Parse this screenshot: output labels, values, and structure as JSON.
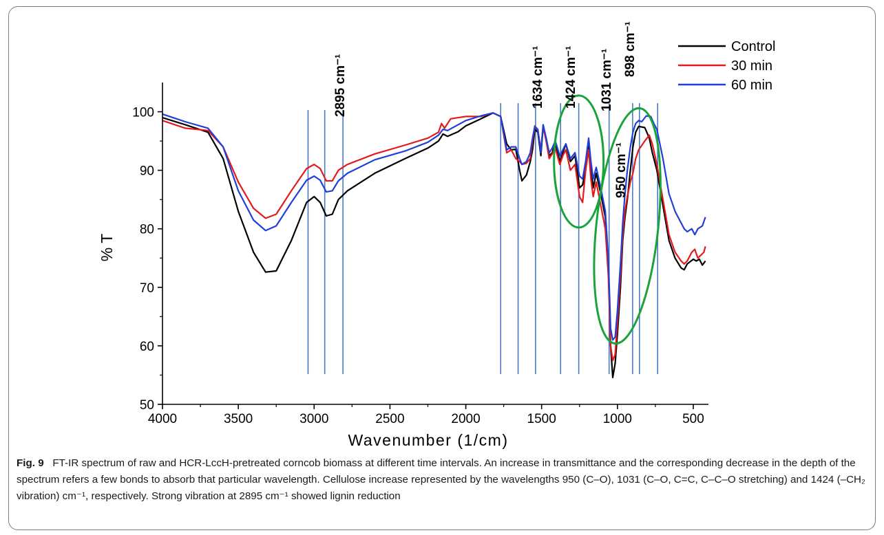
{
  "chart_data": {
    "type": "line",
    "xlabel": "Wavenumber (1/cm)",
    "ylabel": "% T",
    "xlim": [
      4000,
      400
    ],
    "ylim": [
      50,
      105
    ],
    "xticks": [
      4000,
      3500,
      3000,
      2500,
      2000,
      1500,
      1000,
      500
    ],
    "yticks": [
      50,
      60,
      70,
      80,
      90,
      100
    ],
    "legend_position": "top-right",
    "series": [
      {
        "name": "Control",
        "color": "#000000",
        "points": [
          [
            4000,
            99
          ],
          [
            3850,
            97.8
          ],
          [
            3700,
            96.5
          ],
          [
            3600,
            92
          ],
          [
            3500,
            83
          ],
          [
            3400,
            76
          ],
          [
            3320,
            72.6
          ],
          [
            3250,
            72.8
          ],
          [
            3150,
            78
          ],
          [
            3050,
            84.5
          ],
          [
            3000,
            85.5
          ],
          [
            2960,
            84.5
          ],
          [
            2920,
            82.2
          ],
          [
            2880,
            82.5
          ],
          [
            2840,
            85
          ],
          [
            2780,
            86.5
          ],
          [
            2600,
            89.5
          ],
          [
            2400,
            92
          ],
          [
            2250,
            93.8
          ],
          [
            2180,
            95
          ],
          [
            2150,
            96.2
          ],
          [
            2120,
            95.8
          ],
          [
            2050,
            96.6
          ],
          [
            2000,
            97.6
          ],
          [
            1900,
            98.8
          ],
          [
            1820,
            99.8
          ],
          [
            1770,
            99.2
          ],
          [
            1730,
            94.5
          ],
          [
            1700,
            93.5
          ],
          [
            1670,
            93.6
          ],
          [
            1645,
            90
          ],
          [
            1630,
            88.2
          ],
          [
            1600,
            89.2
          ],
          [
            1575,
            91.5
          ],
          [
            1560,
            93.5
          ],
          [
            1545,
            97
          ],
          [
            1525,
            96.5
          ],
          [
            1505,
            92.5
          ],
          [
            1490,
            97.5
          ],
          [
            1470,
            95.5
          ],
          [
            1450,
            92.5
          ],
          [
            1430,
            93
          ],
          [
            1410,
            94.8
          ],
          [
            1380,
            91.5
          ],
          [
            1360,
            93
          ],
          [
            1340,
            94.5
          ],
          [
            1310,
            91.5
          ],
          [
            1280,
            92.5
          ],
          [
            1250,
            87
          ],
          [
            1230,
            87.5
          ],
          [
            1210,
            90
          ],
          [
            1190,
            94.5
          ],
          [
            1175,
            90.5
          ],
          [
            1160,
            87
          ],
          [
            1140,
            89.5
          ],
          [
            1110,
            86
          ],
          [
            1080,
            82
          ],
          [
            1060,
            74
          ],
          [
            1045,
            60
          ],
          [
            1031,
            54.6
          ],
          [
            1015,
            57
          ],
          [
            1000,
            62
          ],
          [
            980,
            70
          ],
          [
            965,
            78
          ],
          [
            950,
            82
          ],
          [
            935,
            85
          ],
          [
            915,
            90
          ],
          [
            898,
            94
          ],
          [
            880,
            96.5
          ],
          [
            860,
            97.5
          ],
          [
            820,
            97.3
          ],
          [
            790,
            95.5
          ],
          [
            770,
            93
          ],
          [
            740,
            90
          ],
          [
            700,
            84
          ],
          [
            660,
            78
          ],
          [
            620,
            75
          ],
          [
            580,
            73.3
          ],
          [
            560,
            73
          ],
          [
            540,
            74
          ],
          [
            500,
            74.8
          ],
          [
            480,
            74.5
          ],
          [
            460,
            74.8
          ],
          [
            440,
            73.8
          ],
          [
            420,
            74.5
          ]
        ]
      },
      {
        "name": "30 min",
        "color": "#e31a1c",
        "points": [
          [
            4000,
            98.5
          ],
          [
            3850,
            97.2
          ],
          [
            3700,
            96.8
          ],
          [
            3600,
            94
          ],
          [
            3500,
            88
          ],
          [
            3400,
            83.5
          ],
          [
            3320,
            81.8
          ],
          [
            3250,
            82.5
          ],
          [
            3150,
            86.5
          ],
          [
            3050,
            90.3
          ],
          [
            3000,
            91
          ],
          [
            2960,
            90.3
          ],
          [
            2920,
            88.2
          ],
          [
            2880,
            88.2
          ],
          [
            2840,
            90
          ],
          [
            2780,
            91
          ],
          [
            2600,
            92.8
          ],
          [
            2400,
            94.3
          ],
          [
            2250,
            95.5
          ],
          [
            2180,
            96.5
          ],
          [
            2160,
            98
          ],
          [
            2140,
            97.2
          ],
          [
            2100,
            98.8
          ],
          [
            2050,
            99
          ],
          [
            2000,
            99.2
          ],
          [
            1900,
            99.2
          ],
          [
            1820,
            99.8
          ],
          [
            1770,
            99.2
          ],
          [
            1730,
            93
          ],
          [
            1700,
            93.5
          ],
          [
            1670,
            92
          ],
          [
            1645,
            91.5
          ],
          [
            1630,
            91
          ],
          [
            1600,
            91.2
          ],
          [
            1575,
            92
          ],
          [
            1560,
            95
          ],
          [
            1545,
            97.6
          ],
          [
            1525,
            96.8
          ],
          [
            1505,
            93.5
          ],
          [
            1490,
            97.5
          ],
          [
            1470,
            95
          ],
          [
            1450,
            92
          ],
          [
            1430,
            92.8
          ],
          [
            1410,
            93.8
          ],
          [
            1380,
            91
          ],
          [
            1360,
            92.5
          ],
          [
            1340,
            93.5
          ],
          [
            1310,
            90
          ],
          [
            1280,
            91
          ],
          [
            1250,
            85.5
          ],
          [
            1230,
            84.5
          ],
          [
            1210,
            90
          ],
          [
            1190,
            93.5
          ],
          [
            1175,
            88.5
          ],
          [
            1160,
            85.5
          ],
          [
            1140,
            88
          ],
          [
            1110,
            84
          ],
          [
            1080,
            80
          ],
          [
            1060,
            72
          ],
          [
            1045,
            60
          ],
          [
            1031,
            57.5
          ],
          [
            1015,
            58.5
          ],
          [
            1000,
            64
          ],
          [
            980,
            72
          ],
          [
            965,
            79
          ],
          [
            950,
            83
          ],
          [
            935,
            85.5
          ],
          [
            915,
            88
          ],
          [
            898,
            89.5
          ],
          [
            880,
            92
          ],
          [
            860,
            93.5
          ],
          [
            820,
            95
          ],
          [
            790,
            96
          ],
          [
            770,
            94.5
          ],
          [
            740,
            91
          ],
          [
            700,
            85
          ],
          [
            660,
            79
          ],
          [
            620,
            76
          ],
          [
            580,
            74.5
          ],
          [
            560,
            74
          ],
          [
            540,
            74.5
          ],
          [
            510,
            76
          ],
          [
            490,
            76.5
          ],
          [
            470,
            75
          ],
          [
            450,
            75.5
          ],
          [
            430,
            76
          ],
          [
            420,
            77
          ]
        ]
      },
      {
        "name": "60 min",
        "color": "#1f3fd8",
        "points": [
          [
            4000,
            99.6
          ],
          [
            3850,
            98.3
          ],
          [
            3700,
            97.2
          ],
          [
            3600,
            94
          ],
          [
            3500,
            86.5
          ],
          [
            3400,
            81.5
          ],
          [
            3320,
            79.7
          ],
          [
            3250,
            80.5
          ],
          [
            3150,
            84.5
          ],
          [
            3050,
            88.3
          ],
          [
            3000,
            89
          ],
          [
            2960,
            88.3
          ],
          [
            2920,
            86.3
          ],
          [
            2880,
            86.5
          ],
          [
            2840,
            88.2
          ],
          [
            2780,
            89.5
          ],
          [
            2600,
            91.8
          ],
          [
            2400,
            93.3
          ],
          [
            2250,
            94.8
          ],
          [
            2180,
            96
          ],
          [
            2150,
            97
          ],
          [
            2120,
            96.8
          ],
          [
            2050,
            97.8
          ],
          [
            2000,
            98.5
          ],
          [
            1900,
            99.3
          ],
          [
            1820,
            99.8
          ],
          [
            1770,
            99.2
          ],
          [
            1730,
            93.5
          ],
          [
            1700,
            94
          ],
          [
            1670,
            94
          ],
          [
            1645,
            92
          ],
          [
            1630,
            91
          ],
          [
            1600,
            91.5
          ],
          [
            1575,
            93
          ],
          [
            1560,
            95.5
          ],
          [
            1545,
            97.5
          ],
          [
            1525,
            97
          ],
          [
            1505,
            93
          ],
          [
            1490,
            97.8
          ],
          [
            1470,
            95.5
          ],
          [
            1450,
            93
          ],
          [
            1430,
            93.8
          ],
          [
            1410,
            95
          ],
          [
            1380,
            92.5
          ],
          [
            1360,
            93.5
          ],
          [
            1340,
            94.5
          ],
          [
            1310,
            92
          ],
          [
            1280,
            93
          ],
          [
            1250,
            89
          ],
          [
            1230,
            88.5
          ],
          [
            1210,
            91.5
          ],
          [
            1190,
            95.5
          ],
          [
            1175,
            91.5
          ],
          [
            1160,
            88.5
          ],
          [
            1140,
            90.5
          ],
          [
            1110,
            87
          ],
          [
            1080,
            83
          ],
          [
            1060,
            75
          ],
          [
            1045,
            63
          ],
          [
            1031,
            61
          ],
          [
            1015,
            61.5
          ],
          [
            1000,
            66
          ],
          [
            980,
            74
          ],
          [
            965,
            81
          ],
          [
            950,
            86
          ],
          [
            935,
            90
          ],
          [
            915,
            94
          ],
          [
            898,
            96.5
          ],
          [
            880,
            98
          ],
          [
            860,
            98.5
          ],
          [
            840,
            98.3
          ],
          [
            810,
            99.3
          ],
          [
            780,
            99.2
          ],
          [
            760,
            98
          ],
          [
            740,
            97
          ],
          [
            700,
            92
          ],
          [
            660,
            86
          ],
          [
            620,
            83
          ],
          [
            580,
            81
          ],
          [
            560,
            80
          ],
          [
            540,
            79.5
          ],
          [
            510,
            80
          ],
          [
            490,
            79
          ],
          [
            470,
            80
          ],
          [
            440,
            80.5
          ],
          [
            420,
            82
          ]
        ]
      }
    ],
    "marker_lines_x": [
      3040,
      2930,
      2810,
      1770,
      1655,
      1540,
      1375,
      1255,
      1055,
      900,
      855,
      735
    ],
    "peak_annotations": [
      "2895 cm⁻¹",
      "1634 cm⁻¹",
      "1424 cm⁻¹",
      "1031 cm⁻¹",
      "898 cm⁻¹",
      "950 cm⁻¹"
    ],
    "highlight_color": "#1aa33a",
    "marker_line_color": "#4a79c7"
  },
  "caption": {
    "fig_label": "Fig. 9",
    "text": "FT-IR spectrum of raw and HCR-LccH-pretreated corncob biomass at different time intervals. An increase in transmittance and the corresponding decrease in the depth of the spectrum refers a few bonds to absorb that particular wavelength. Cellulose increase represented by the wavelengths 950 (C–O), 1031 (C–O, C=C, C–C–O stretching) and 1424 (–CH₂ vibration) cm⁻¹, respectively. Strong vibration at 2895 cm⁻¹ showed lignin reduction"
  }
}
